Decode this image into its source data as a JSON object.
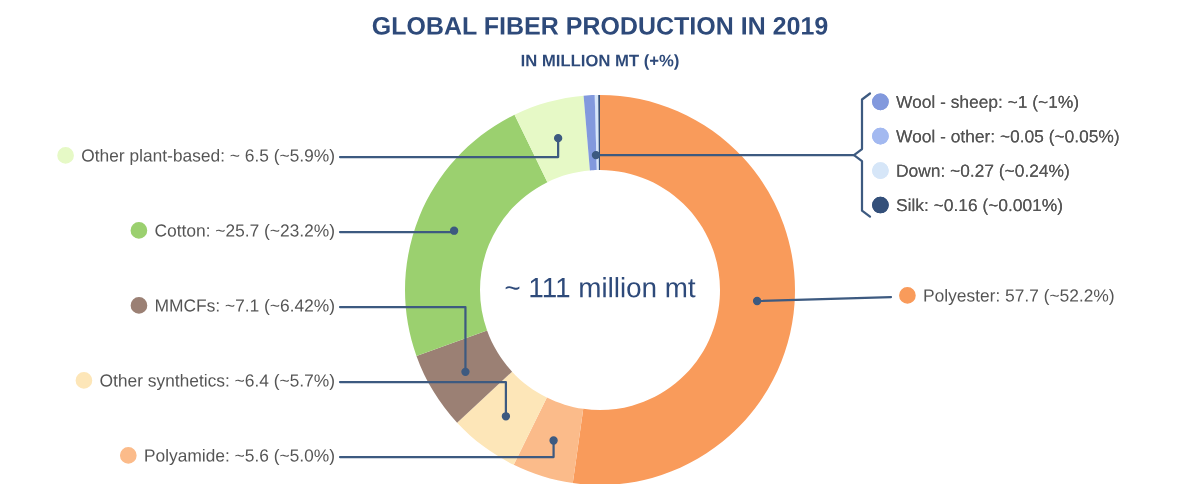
{
  "chart_data": {
    "type": "donut",
    "title": "GLOBAL FIBER PRODUCTION IN 2019",
    "subtitle": "IN MILLION MT (+%)",
    "categories": [
      "Polyester: 57.7 (~52.2%)",
      "Polyamide: ~5.6 (~5.0%)",
      "Other synthetics: ~6.4 (~5.7%)",
      "MMCFs: ~7.1 (~6.42%)",
      "Cotton: ~25.7 (~23.2%)",
      "Other plant-based: ~ 6.5 (~5.9%)",
      "Wool - sheep: ~1 (~1%)",
      "Wool - other: ~0.05 (~0.05%)",
      "Down: ~0.27 (~0.24%)",
      "Silk: ~0.16 (~0.001%)"
    ],
    "values": [
      57.7,
      5.6,
      6.4,
      7.1,
      25.7,
      6.5,
      1,
      0.05,
      0.27,
      0.16
    ],
    "colors": [
      "#f99b5b",
      "#fbbb8a",
      "#fde6b8",
      "#9b8074",
      "#9bd06f",
      "#e6f9c6",
      "#8299dd",
      "#a3b9f0",
      "#d6e6f8",
      "#34507a"
    ],
    "legend": "right",
    "annotations": [
      "~ 111 million mt"
    ]
  }
}
